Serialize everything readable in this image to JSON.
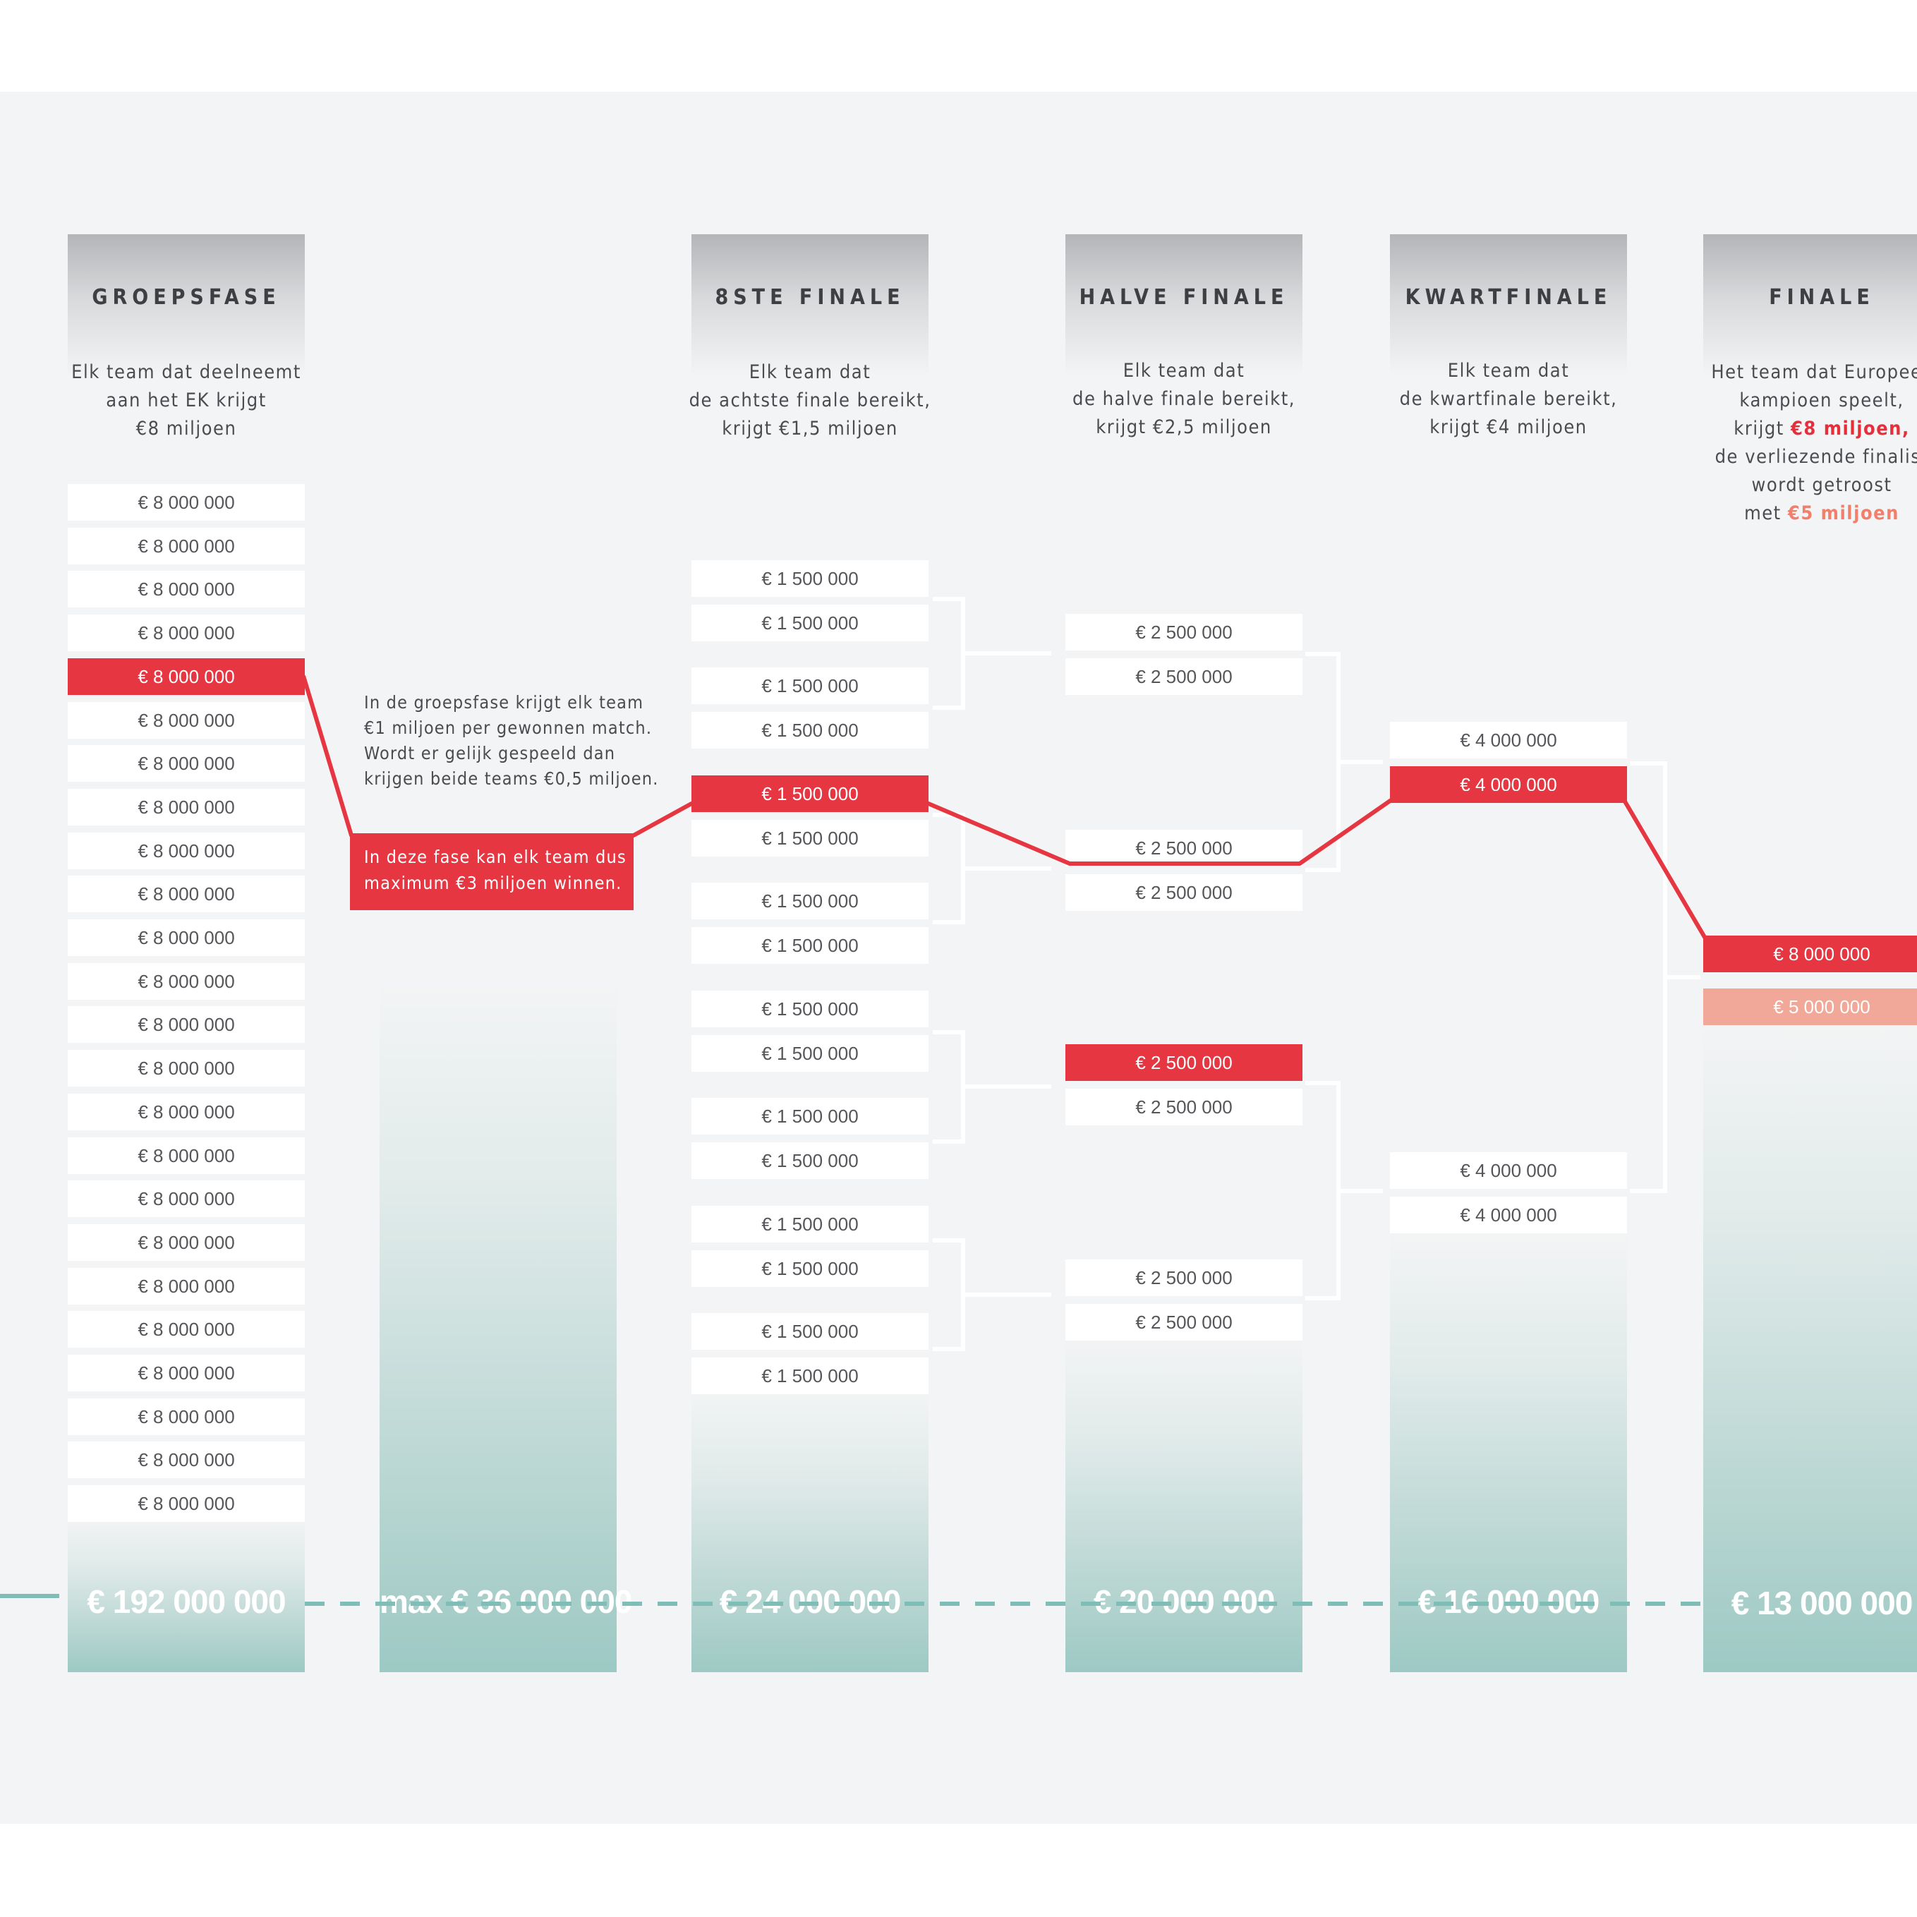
{
  "stages": {
    "groepsfase": {
      "title": "GROEPSFASE",
      "desc": [
        "Elk team dat deelneemt",
        "aan het EK krijgt",
        "€8 miljoen"
      ],
      "amount": "€ 8 000 000",
      "count": 24,
      "highlight_index": 4,
      "total": "€ 192 000 000"
    },
    "match_wins": {
      "note": [
        "In de groepsfase krijgt elk team",
        "€1 miljoen per gewonnen match.",
        "Wordt er gelijk gespeeld dan",
        "krijgen beide teams €0,5 miljoen."
      ],
      "callout": [
        "In deze fase kan elk team dus",
        "maximum €3 miljoen winnen."
      ],
      "total": "max  € 36 000 000"
    },
    "achtste": {
      "title": "8STE FINALE",
      "desc": [
        "Elk team dat",
        "de achtste finale bereikt,",
        "krijgt €1,5 miljoen"
      ],
      "amount": "€ 1 500 000",
      "count": 16,
      "highlight_index": 4,
      "total": "€ 24 000 000"
    },
    "halve": {
      "title": "HALVE FINALE",
      "desc": [
        "Elk team dat",
        "de halve finale bereikt,",
        "krijgt €2,5 miljoen"
      ],
      "amount": "€ 2 500 000",
      "count": 8,
      "highlight_index": 4,
      "total": "€ 20 000 000"
    },
    "kwart": {
      "title": "KWARTFINALE",
      "desc": [
        "Elk team dat",
        "de kwartfinale bereikt,",
        "krijgt €4 miljoen"
      ],
      "amount": "€ 4 000 000",
      "count": 4,
      "highlight_index": 1,
      "total": "€ 16 000 000"
    },
    "finale": {
      "title": "FINALE",
      "desc_1": "Het team dat Europees",
      "desc_2": "kampioen speelt,",
      "desc_3_pre": "krijgt ",
      "desc_3_hl": "€8 miljoen",
      "desc_3_post": ",",
      "desc_4": "de verliezende finalist",
      "desc_5": "wordt getroost",
      "desc_6_pre": "met ",
      "desc_6_hl": "€5 miljoen",
      "winner": "€ 8 000 000",
      "loser": "€ 5 000 000",
      "total": "€ 13 000 000"
    }
  },
  "colors": {
    "red": "#e63641",
    "salmon": "#f2a898",
    "teal": "#9dc9c4",
    "dashed_line": "#7fbdb7"
  }
}
